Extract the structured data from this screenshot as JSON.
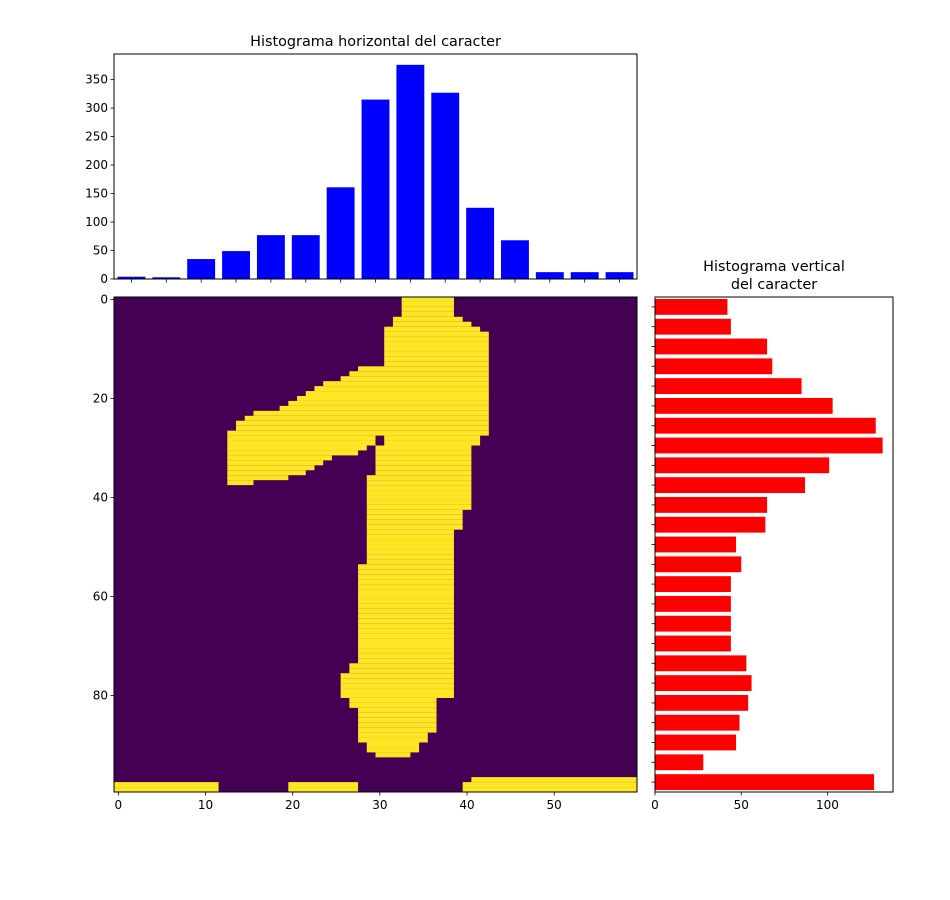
{
  "chart_data": [
    {
      "type": "bar",
      "title": "Histograma horizontal del caracter",
      "color": "#0000ff",
      "values": [
        4,
        3,
        35,
        49,
        77,
        77,
        161,
        315,
        376,
        327,
        125,
        68,
        12,
        12,
        12
      ],
      "ylim": [
        0,
        395
      ],
      "yticks": [
        0,
        50,
        100,
        150,
        200,
        250,
        300,
        350
      ]
    },
    {
      "type": "image",
      "colors": [
        "#440154",
        "#fde725"
      ],
      "xlim": [
        -0.5,
        59.5
      ],
      "ylim": [
        99.5,
        -0.5
      ],
      "xticks": [
        0,
        10,
        20,
        30,
        40,
        50
      ],
      "yticks": [
        0,
        20,
        40,
        60,
        80
      ],
      "spans": [
        [
          [
            33,
            39
          ]
        ],
        [
          [
            33,
            39
          ]
        ],
        [
          [
            33,
            39
          ]
        ],
        [
          [
            33,
            39
          ]
        ],
        [
          [
            32,
            40
          ]
        ],
        [
          [
            32,
            41
          ]
        ],
        [
          [
            31,
            42
          ]
        ],
        [
          [
            31,
            43
          ]
        ],
        [
          [
            31,
            43
          ]
        ],
        [
          [
            31,
            43
          ]
        ],
        [
          [
            31,
            43
          ]
        ],
        [
          [
            31,
            43
          ]
        ],
        [
          [
            31,
            43
          ]
        ],
        [
          [
            31,
            43
          ]
        ],
        [
          [
            28,
            43
          ]
        ],
        [
          [
            27,
            43
          ]
        ],
        [
          [
            26,
            43
          ]
        ],
        [
          [
            24,
            43
          ]
        ],
        [
          [
            23,
            43
          ]
        ],
        [
          [
            22,
            43
          ]
        ],
        [
          [
            21,
            43
          ]
        ],
        [
          [
            20,
            43
          ]
        ],
        [
          [
            19,
            43
          ]
        ],
        [
          [
            16,
            43
          ]
        ],
        [
          [
            15,
            43
          ]
        ],
        [
          [
            14,
            43
          ]
        ],
        [
          [
            14,
            43
          ]
        ],
        [
          [
            13,
            43
          ]
        ],
        [
          [
            13,
            30
          ],
          [
            31,
            42
          ]
        ],
        [
          [
            13,
            30
          ],
          [
            31,
            42
          ]
        ],
        [
          [
            13,
            29
          ],
          [
            30,
            41
          ]
        ],
        [
          [
            13,
            28
          ],
          [
            30,
            41
          ]
        ],
        [
          [
            13,
            25
          ],
          [
            30,
            41
          ]
        ],
        [
          [
            13,
            24
          ],
          [
            30,
            41
          ]
        ],
        [
          [
            13,
            23
          ],
          [
            30,
            41
          ]
        ],
        [
          [
            13,
            22
          ],
          [
            30,
            41
          ]
        ],
        [
          [
            13,
            20
          ],
          [
            29,
            41
          ]
        ],
        [
          [
            13,
            16
          ],
          [
            29,
            41
          ]
        ],
        [
          [
            29,
            41
          ]
        ],
        [
          [
            29,
            41
          ]
        ],
        [
          [
            29,
            41
          ]
        ],
        [
          [
            29,
            41
          ]
        ],
        [
          [
            29,
            41
          ]
        ],
        [
          [
            29,
            40
          ]
        ],
        [
          [
            29,
            40
          ]
        ],
        [
          [
            29,
            40
          ]
        ],
        [
          [
            29,
            40
          ]
        ],
        [
          [
            29,
            39
          ]
        ],
        [
          [
            29,
            39
          ]
        ],
        [
          [
            29,
            39
          ]
        ],
        [
          [
            29,
            39
          ]
        ],
        [
          [
            29,
            39
          ]
        ],
        [
          [
            29,
            39
          ]
        ],
        [
          [
            29,
            39
          ]
        ],
        [
          [
            28,
            39
          ]
        ],
        [
          [
            28,
            39
          ]
        ],
        [
          [
            28,
            39
          ]
        ],
        [
          [
            28,
            39
          ]
        ],
        [
          [
            28,
            39
          ]
        ],
        [
          [
            28,
            39
          ]
        ],
        [
          [
            28,
            39
          ]
        ],
        [
          [
            28,
            39
          ]
        ],
        [
          [
            28,
            39
          ]
        ],
        [
          [
            28,
            39
          ]
        ],
        [
          [
            28,
            39
          ]
        ],
        [
          [
            28,
            39
          ]
        ],
        [
          [
            28,
            39
          ]
        ],
        [
          [
            28,
            39
          ]
        ],
        [
          [
            28,
            39
          ]
        ],
        [
          [
            28,
            39
          ]
        ],
        [
          [
            28,
            39
          ]
        ],
        [
          [
            28,
            39
          ]
        ],
        [
          [
            28,
            39
          ]
        ],
        [
          [
            28,
            39
          ]
        ],
        [
          [
            27,
            39
          ]
        ],
        [
          [
            27,
            39
          ]
        ],
        [
          [
            26,
            39
          ]
        ],
        [
          [
            26,
            39
          ]
        ],
        [
          [
            26,
            39
          ]
        ],
        [
          [
            26,
            39
          ]
        ],
        [
          [
            26,
            39
          ]
        ],
        [
          [
            27,
            37
          ]
        ],
        [
          [
            27,
            37
          ]
        ],
        [
          [
            28,
            37
          ]
        ],
        [
          [
            28,
            37
          ]
        ],
        [
          [
            28,
            37
          ]
        ],
        [
          [
            28,
            37
          ]
        ],
        [
          [
            28,
            37
          ]
        ],
        [
          [
            28,
            36
          ]
        ],
        [
          [
            28,
            36
          ]
        ],
        [
          [
            29,
            35
          ]
        ],
        [
          [
            29,
            35
          ]
        ],
        [
          [
            30,
            34
          ]
        ],
        [],
        [],
        [],
        [],
        [
          [
            41,
            60
          ]
        ],
        [
          [
            0,
            12
          ],
          [
            20,
            28
          ],
          [
            40,
            60
          ]
        ],
        [
          [
            0,
            12
          ],
          [
            20,
            28
          ],
          [
            40,
            60
          ]
        ]
      ]
    },
    {
      "type": "barh",
      "title": [
        "Histograma vertical",
        "del caracter"
      ],
      "color": "#ff0000",
      "values": [
        42,
        44,
        65,
        68,
        85,
        103,
        128,
        132,
        101,
        87,
        65,
        64,
        47,
        50,
        44,
        44,
        44,
        44,
        53,
        56,
        54,
        49,
        47,
        28,
        127
      ],
      "xlim": [
        0,
        138
      ],
      "xticks": [
        0,
        50,
        100
      ]
    }
  ]
}
